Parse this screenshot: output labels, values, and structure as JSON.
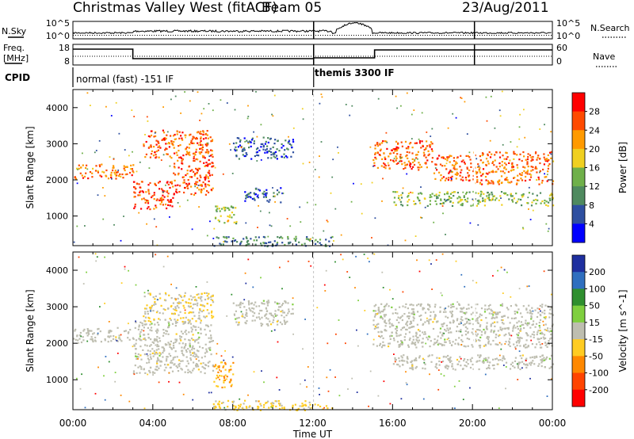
{
  "header": {
    "station": "Christmas Valley West (fitACF)",
    "beam": "Beam 05",
    "date": "23/Aug/2011"
  },
  "summary_labels": {
    "nsky": "N.Sky",
    "nsearch": "N.Search",
    "freq": "Freq.",
    "freq_unit": "[MHz]",
    "nave": "Nave",
    "cpid": "CPID",
    "noise_ticks": [
      "10^5",
      "10^0"
    ],
    "freq_ticks": [
      "18",
      "8"
    ],
    "nave_ticks": [
      "60",
      "0"
    ]
  },
  "cpid": {
    "left_label": "normal (fast) -151 IF",
    "right_label": "themis 3300 IF"
  },
  "colors": {
    "power_scale": [
      "#0000ff",
      "#2e4fa0",
      "#4f8a5f",
      "#6fb04a",
      "#f0d020",
      "#ff9a00",
      "#ff4a00",
      "#ff0000"
    ],
    "velocity_scale": [
      "#1e2f9f",
      "#2f6fbf",
      "#2f8f2f",
      "#7fcf3f",
      "#bebeb0",
      "#ffcc22",
      "#ff8800",
      "#ff4400",
      "#ff0000"
    ],
    "ground_scatter": "#b8b8b0"
  },
  "chart_data": [
    {
      "type": "heatmap",
      "panel": "power",
      "ylabel": "Slant Range [km]",
      "yticks": [
        "1000",
        "2000",
        "3000",
        "4000"
      ],
      "ylim": [
        180,
        4500
      ],
      "xlim": [
        0,
        24
      ],
      "colorbar_label": "Power [dB]",
      "colorbar_ticks": [
        "28",
        "24",
        "20",
        "16",
        "12",
        "8",
        "4"
      ],
      "colorbar_range": [
        0,
        32
      ],
      "bands": [
        {
          "t0": 0.0,
          "t1": 3.0,
          "r0": 2050,
          "r1": 2450,
          "value": 24
        },
        {
          "t0": 3.0,
          "t1": 5.0,
          "r0": 1200,
          "r1": 2000,
          "value": 27
        },
        {
          "t0": 5.0,
          "t1": 7.0,
          "r0": 1600,
          "r1": 2600,
          "value": 26
        },
        {
          "t0": 3.5,
          "t1": 7.0,
          "r0": 2600,
          "r1": 3400,
          "value": 25
        },
        {
          "t0": 7.0,
          "t1": 8.2,
          "r0": 800,
          "r1": 1300,
          "value": 16
        },
        {
          "t0": 8.0,
          "t1": 11.0,
          "r0": 2600,
          "r1": 3200,
          "value": 6
        },
        {
          "t0": 8.5,
          "t1": 10.5,
          "r0": 1400,
          "r1": 1800,
          "value": 7
        },
        {
          "t0": 7.0,
          "t1": 13.0,
          "r0": 180,
          "r1": 450,
          "value": 9
        },
        {
          "t0": 15.0,
          "t1": 18.0,
          "r0": 2300,
          "r1": 3100,
          "value": 25
        },
        {
          "t0": 18.0,
          "t1": 20.0,
          "r0": 2000,
          "r1": 2700,
          "value": 25
        },
        {
          "t0": 20.0,
          "t1": 24.0,
          "r0": 1900,
          "r1": 2800,
          "value": 24
        },
        {
          "t0": 16.0,
          "t1": 24.0,
          "r0": 1300,
          "r1": 1700,
          "value": 14
        }
      ]
    },
    {
      "type": "heatmap",
      "panel": "velocity",
      "ylabel": "Slant Range [km]",
      "yticks": [
        "1000",
        "2000",
        "3000",
        "4000"
      ],
      "ylim": [
        180,
        4500
      ],
      "xlim": [
        0,
        24
      ],
      "xlabel": "Time UT",
      "xticks": [
        "00:00",
        "04:00",
        "08:00",
        "12:00",
        "16:00",
        "20:00",
        "00:00"
      ],
      "colorbar_label": "Velocity [m s^-1]",
      "colorbar_ticks": [
        "200",
        "100",
        "50",
        "15",
        "-15",
        "-50",
        "-100",
        "-200"
      ],
      "colorbar_range": [
        -250,
        250
      ],
      "bands": [
        {
          "t0": 0.0,
          "t1": 3.0,
          "r0": 2050,
          "r1": 2450,
          "value": 0
        },
        {
          "t0": 3.0,
          "t1": 7.0,
          "r0": 1200,
          "r1": 2600,
          "value": 0
        },
        {
          "t0": 3.5,
          "t1": 7.0,
          "r0": 2600,
          "r1": 3400,
          "value": -30
        },
        {
          "t0": 7.0,
          "t1": 8.0,
          "r0": 800,
          "r1": 1500,
          "value": -90
        },
        {
          "t0": 8.0,
          "t1": 11.0,
          "r0": 2500,
          "r1": 3200,
          "value": 0
        },
        {
          "t0": 15.0,
          "t1": 24.0,
          "r0": 1900,
          "r1": 3100,
          "value": 0
        },
        {
          "t0": 16.0,
          "t1": 24.0,
          "r0": 1300,
          "r1": 1700,
          "value": 0
        },
        {
          "t0": 7.0,
          "t1": 13.0,
          "r0": 180,
          "r1": 450,
          "value": -40
        }
      ]
    }
  ]
}
